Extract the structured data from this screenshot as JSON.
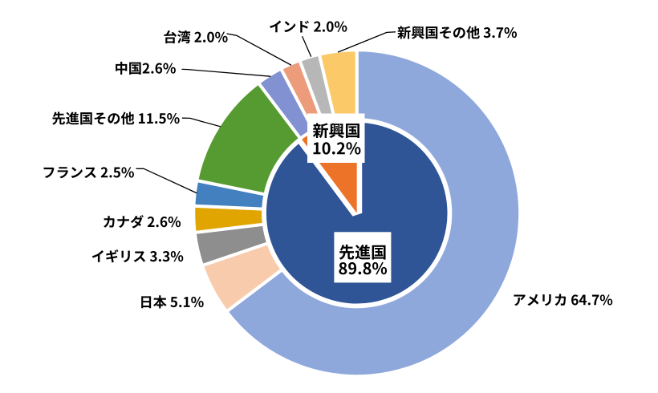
{
  "chart_data": {
    "type": "pie",
    "variant": "nested-donut",
    "title": "",
    "unit": "%",
    "start_angle_deg": 0,
    "direction": "clockwise",
    "background": "#ffffff",
    "inner_series": {
      "name": "region",
      "slices": [
        {
          "id": "developed",
          "label": "先進国",
          "value": 89.8,
          "color": "#2F5597"
        },
        {
          "id": "emerging",
          "label": "新興国",
          "value": 10.2,
          "color": "#EC7327"
        }
      ]
    },
    "outer_series": {
      "name": "country",
      "slices": [
        {
          "id": "usa",
          "label": "アメリカ",
          "value": 64.7,
          "color": "#8FA8DC"
        },
        {
          "id": "japan",
          "label": "日本",
          "value": 5.1,
          "color": "#F8CBAD"
        },
        {
          "id": "uk",
          "label": "イギリス",
          "value": 3.3,
          "color": "#8E8E8E"
        },
        {
          "id": "canada",
          "label": "カナダ",
          "value": 2.6,
          "color": "#E0A500"
        },
        {
          "id": "france",
          "label": "フランス",
          "value": 2.5,
          "color": "#4380BF"
        },
        {
          "id": "developed-other",
          "label": "先進国その他",
          "value": 11.5,
          "color": "#569B31"
        },
        {
          "id": "china",
          "label": "中国",
          "value": 2.6,
          "color": "#8191D1"
        },
        {
          "id": "taiwan",
          "label": "台湾",
          "value": 2.0,
          "color": "#ED9C7B"
        },
        {
          "id": "india",
          "label": "インド",
          "value": 2.0,
          "color": "#B7B7B7"
        },
        {
          "id": "emerging-other",
          "label": "新興国その他",
          "value": 3.7,
          "color": "#FCC969"
        }
      ]
    }
  },
  "callouts": {
    "taiwan": {
      "text": "台湾 2.0%"
    },
    "india": {
      "text": "インド 2.0%"
    },
    "emerging_other": {
      "text": "新興国その他 3.7%"
    },
    "china": {
      "text": "中国2.6%"
    },
    "developed_other": {
      "text": "先進国その他 11.5%"
    },
    "france": {
      "text": "フランス 2.5%"
    },
    "canada": {
      "text": "カナダ 2.6%"
    },
    "uk": {
      "text": "イギリス 3.3%"
    },
    "japan": {
      "text": "日本 5.1%"
    },
    "usa": {
      "text": "アメリカ 64.7%"
    }
  },
  "center_labels": {
    "emerging": {
      "line1": "新興国",
      "line2": "10.2%"
    },
    "developed": {
      "line1": "先進国",
      "line2": "89.8%"
    }
  },
  "text_color": "#000000",
  "leader_line_color": "#000000"
}
